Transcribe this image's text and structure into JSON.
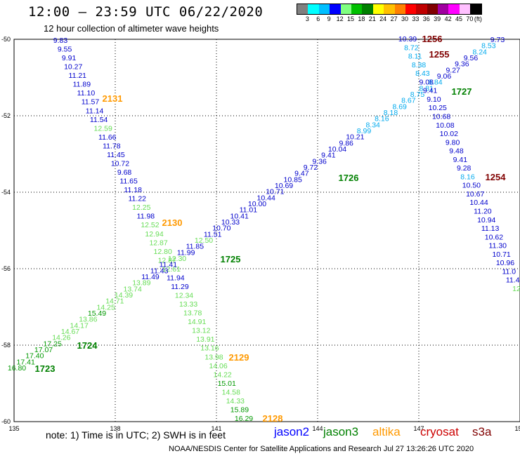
{
  "header": {
    "title": "12:00 – 23:59 UTC 06/22/2020",
    "subtitle": "12 hour collection of altimeter wave heights"
  },
  "color_scale": {
    "labels": [
      "3",
      "6",
      "9",
      "12",
      "15",
      "18",
      "21",
      "24",
      "27",
      "30",
      "33",
      "36",
      "39",
      "42",
      "45",
      "70",
      "(ft)"
    ],
    "colors": [
      "#808080",
      "#00ffff",
      "#00bfff",
      "#0000ff",
      "#80ff80",
      "#00c000",
      "#008000",
      "#ffff00",
      "#ffc000",
      "#ff8000",
      "#ff0000",
      "#c00000",
      "#800000",
      "#a000a0",
      "#ff00ff",
      "#ffc0ff",
      "#000000"
    ]
  },
  "axes": {
    "lon_labels": [
      "135",
      "138",
      "141",
      "144",
      "147",
      "150"
    ],
    "lat_labels": [
      "-50",
      "-52",
      "-54",
      "-56",
      "-58",
      "-60"
    ]
  },
  "passes": [
    {
      "label": "2131",
      "color": "#ff9900"
    },
    {
      "label": "2130",
      "color": "#ff9900"
    },
    {
      "label": "2129",
      "color": "#ff9900"
    },
    {
      "label": "2128",
      "color": "#ff9900"
    },
    {
      "label": "1727",
      "color": "#008000"
    },
    {
      "label": "1726",
      "color": "#008000"
    },
    {
      "label": "1725",
      "color": "#008000"
    },
    {
      "label": "1724",
      "color": "#008000"
    },
    {
      "label": "1723",
      "color": "#008000"
    },
    {
      "label": "1256",
      "color": "#800000"
    },
    {
      "label": "1255",
      "color": "#800000"
    },
    {
      "label": "1254",
      "color": "#800000"
    }
  ],
  "tracks": {
    "jason2_desc": [
      "9.83",
      "9.55",
      "9.91",
      "10.27",
      "11.21",
      "11.89",
      "11.10",
      "11.57",
      "11.14",
      "11.54",
      "12.59",
      "11.66",
      "11.78",
      "11.45",
      "10.72",
      "9.68",
      "11.65",
      "11.18",
      "11.22",
      "12.25",
      "11.98",
      "12.52",
      "12.94",
      "12.87",
      "12.80",
      "12.87",
      "12.61",
      "11.94",
      "11.29",
      "12.34",
      "13.33",
      "13.78",
      "14.91",
      "13.12",
      "13.91",
      "13.16",
      "13.98",
      "14.06",
      "14.22",
      "15.01",
      "14.58",
      "14.33",
      "15.89",
      "16.29"
    ],
    "jason2_asc": [
      "16.80",
      "17.41",
      "17.40",
      "17.07",
      "17.25",
      "14.26",
      "14.67",
      "14.17",
      "13.86",
      "15.49",
      "14.25",
      "14.71",
      "14.39",
      "13.74",
      "13.89",
      "11.49",
      "11.43",
      "11.41",
      "12.30",
      "11.99",
      "11.85",
      "12.50",
      "11.51",
      "10.70",
      "10.33",
      "10.41",
      "11.01",
      "10.00",
      "10.44",
      "10.71",
      "10.69",
      "10.85",
      "9.47",
      "9.72",
      "9.36",
      "9.41",
      "10.04",
      "9.86",
      "10.21",
      "8.99",
      "8.34",
      "8.16",
      "8.18",
      "8.69",
      "8.67",
      "8.75",
      "8.81",
      "8.84",
      "9.06",
      "9.27",
      "9.36",
      "9.56",
      "8.24",
      "8.53",
      "9.73"
    ],
    "sentinel_desc": [
      "10.39",
      "8.72",
      "8.11",
      "8.38",
      "8.43",
      "9.08",
      "9.41",
      "9.10",
      "10.25",
      "10.68",
      "10.08",
      "10.02",
      "9.80",
      "9.48",
      "9.41",
      "9.28",
      "8.16",
      "10.50",
      "10.67",
      "10.44",
      "11.20",
      "10.94",
      "11.13",
      "10.62",
      "11.30",
      "10.71",
      "10.96",
      "11.0",
      "11.4",
      "12"
    ]
  }
}
